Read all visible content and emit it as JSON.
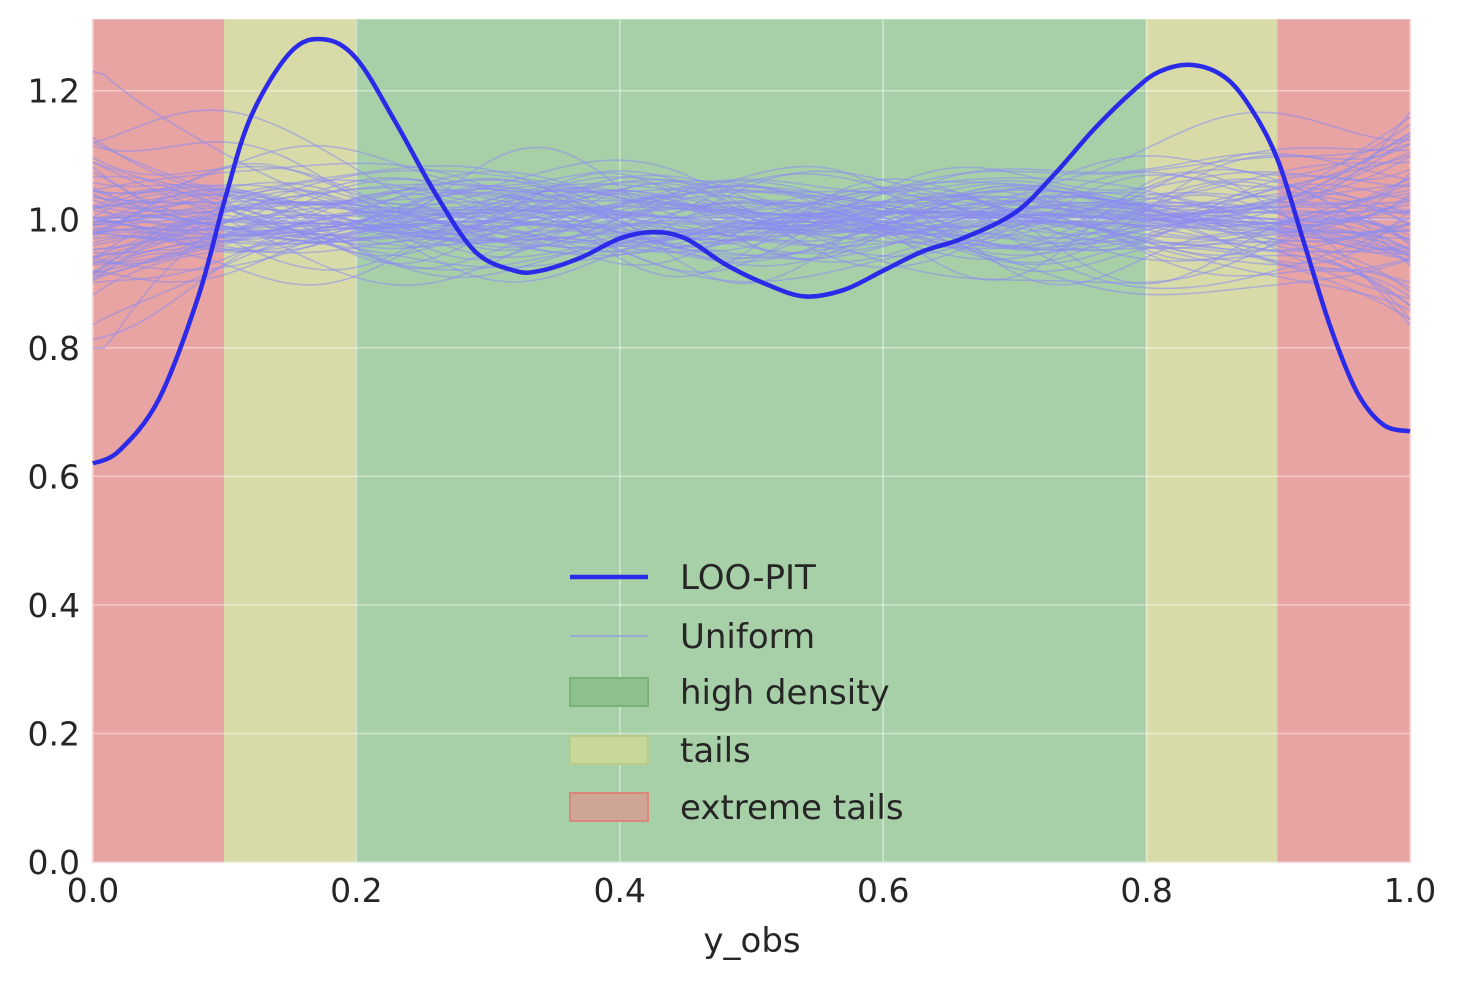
{
  "chart_data": {
    "type": "line",
    "title": "",
    "xlabel": "y_obs",
    "ylabel": "",
    "xlim": [
      0.0,
      1.0
    ],
    "ylim": [
      0.0,
      1.31
    ],
    "grid": true,
    "legend_position": "lower center",
    "xticks": [
      "0.0",
      "0.2",
      "0.4",
      "0.6",
      "0.8",
      "1.0"
    ],
    "yticks": [
      "0.0",
      "0.2",
      "0.4",
      "0.6",
      "0.8",
      "1.0",
      "1.2"
    ],
    "regions": [
      {
        "name": "extreme tails",
        "x0": 0.0,
        "x1": 0.1,
        "color": "#e8a3a3"
      },
      {
        "name": "tails",
        "x0": 0.1,
        "x1": 0.2,
        "color": "#d8dba8"
      },
      {
        "name": "high density",
        "x0": 0.2,
        "x1": 0.8,
        "color": "#a8d0a8"
      },
      {
        "name": "tails",
        "x0": 0.8,
        "x1": 0.9,
        "color": "#d8dba8"
      },
      {
        "name": "extreme tails",
        "x0": 0.9,
        "x1": 1.0,
        "color": "#e8a3a3"
      }
    ],
    "series": [
      {
        "name": "LOO-PIT",
        "color": "#2a2ae8",
        "x": [
          0.0,
          0.02,
          0.05,
          0.08,
          0.1,
          0.12,
          0.15,
          0.175,
          0.2,
          0.23,
          0.26,
          0.29,
          0.32,
          0.34,
          0.37,
          0.4,
          0.425,
          0.45,
          0.48,
          0.51,
          0.54,
          0.57,
          0.6,
          0.63,
          0.66,
          0.7,
          0.73,
          0.76,
          0.79,
          0.81,
          0.835,
          0.86,
          0.88,
          0.9,
          0.92,
          0.94,
          0.96,
          0.98,
          1.0
        ],
        "y": [
          0.62,
          0.64,
          0.72,
          0.88,
          1.03,
          1.16,
          1.26,
          1.28,
          1.25,
          1.15,
          1.04,
          0.95,
          0.92,
          0.92,
          0.94,
          0.97,
          0.98,
          0.97,
          0.93,
          0.9,
          0.88,
          0.89,
          0.92,
          0.95,
          0.97,
          1.01,
          1.07,
          1.14,
          1.2,
          1.23,
          1.24,
          1.22,
          1.17,
          1.09,
          0.96,
          0.83,
          0.73,
          0.68,
          0.67
        ]
      },
      {
        "name": "Uniform",
        "color": "#8c8cf0",
        "n_samples": 80,
        "y_range_center": [
          0.8,
          1.21
        ],
        "y_range_edges": [
          0.8,
          1.23
        ]
      }
    ],
    "legend": [
      "LOO-PIT",
      "Uniform",
      "high density",
      "tails",
      "extreme tails"
    ]
  }
}
